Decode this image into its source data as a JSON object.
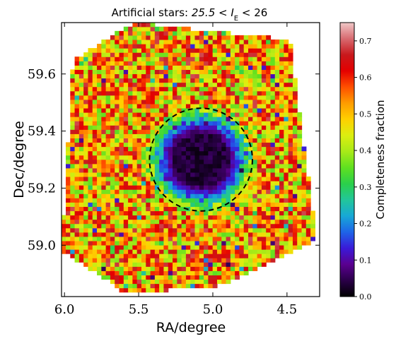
{
  "chart_data": {
    "type": "heatmap",
    "title": "Artificial stars: 25.5 < I_E < 26",
    "title_text": "Artificial stars: ",
    "title_math": "25.5 < I",
    "title_sub": "E",
    "title_tail": " < 26",
    "xlabel": "RA/degree",
    "ylabel": "Dec/degree",
    "xlim": [
      6.02,
      4.28
    ],
    "ylim": [
      58.82,
      59.78
    ],
    "x_inverted": true,
    "xticks": [
      6.0,
      5.5,
      5.0,
      4.5
    ],
    "xtick_labels": [
      "6.0",
      "5.5",
      "5.0",
      "4.5"
    ],
    "yticks": [
      59.0,
      59.2,
      59.4,
      59.6
    ],
    "ytick_labels": [
      "59.0",
      "59.2",
      "59.4",
      "59.6"
    ],
    "colorbar": {
      "label": "Completeness fraction",
      "range": [
        0.0,
        0.75
      ],
      "ticks": [
        0.0,
        0.1,
        0.2,
        0.3,
        0.4,
        0.5,
        0.6,
        0.7
      ],
      "tick_labels": [
        "0.0",
        "0.1",
        "0.2",
        "0.3",
        "0.4",
        "0.5",
        "0.6",
        "0.7"
      ],
      "colormap": [
        "#000000",
        "#2a0048",
        "#5a0090",
        "#3a1ad8",
        "#1e64e8",
        "#17a8d6",
        "#22c69a",
        "#2bd04a",
        "#5fe020",
        "#a8ea18",
        "#dcee10",
        "#ffd000",
        "#ff9c00",
        "#ff5000",
        "#e40000",
        "#c8181c",
        "#d86a70",
        "#f0c8c8"
      ]
    },
    "footprint_corners": [
      [
        5.94,
        59.65
      ],
      [
        5.53,
        59.78
      ],
      [
        4.48,
        59.72
      ],
      [
        4.3,
        59.02
      ],
      [
        4.92,
        58.86
      ],
      [
        5.58,
        58.83
      ],
      [
        6.02,
        58.98
      ]
    ],
    "grid_steps": {
      "ra": 0.03,
      "dec": 0.015
    },
    "masked_cluster": {
      "center_ra": 5.08,
      "center_dec": 59.3,
      "circle_radius_deg": 0.18,
      "center_value": 0.01
    },
    "background_completeness": {
      "mean": 0.52,
      "spread": 0.17
    },
    "circle_style": "dashed"
  }
}
